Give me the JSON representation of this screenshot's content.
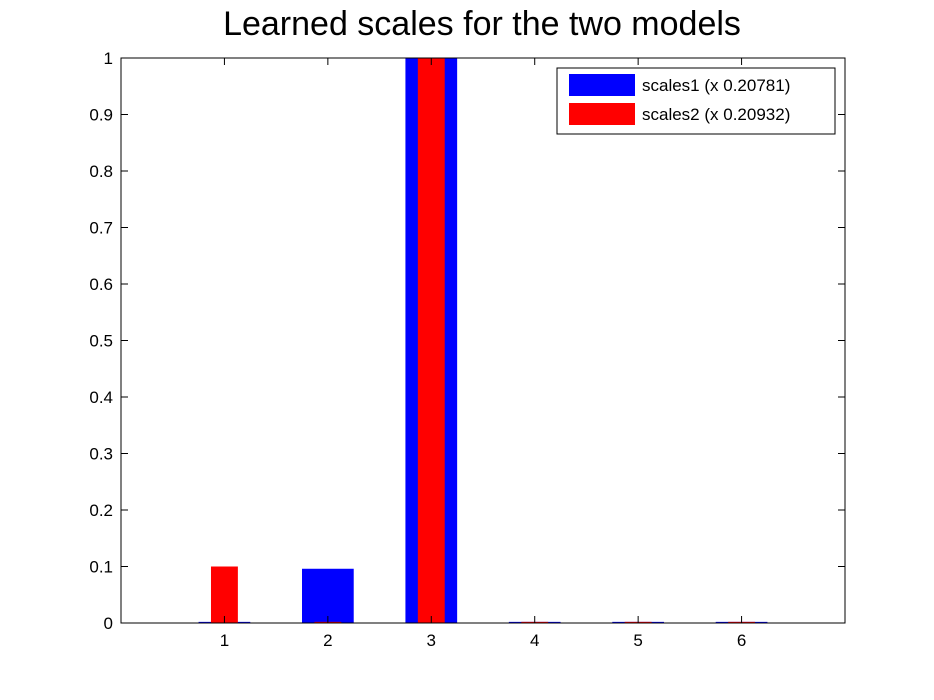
{
  "chart_data": {
    "type": "bar",
    "title": "Learned scales for the two models",
    "xlabel": "",
    "ylabel": "",
    "categories": [
      "1",
      "2",
      "3",
      "4",
      "5",
      "6"
    ],
    "x_ticks": [
      "1",
      "2",
      "3",
      "4",
      "5",
      "6"
    ],
    "xlim": [
      0,
      7
    ],
    "ylim": [
      0,
      1
    ],
    "y_ticks": [
      "0",
      "0.1",
      "0.2",
      "0.3",
      "0.4",
      "0.5",
      "0.6",
      "0.7",
      "0.8",
      "0.9",
      "1"
    ],
    "grid": false,
    "legend_position": "top-right",
    "series": [
      {
        "name": "scales1 (x 0.20781)",
        "color": "#0000ff",
        "values": [
          0.002,
          0.096,
          1.0,
          0.002,
          0.002,
          0.002
        ]
      },
      {
        "name": "scales2 (x 0.20932)",
        "color": "#ff0000",
        "values": [
          0.1,
          0.002,
          1.0,
          0.002,
          0.002,
          0.002
        ]
      }
    ]
  }
}
